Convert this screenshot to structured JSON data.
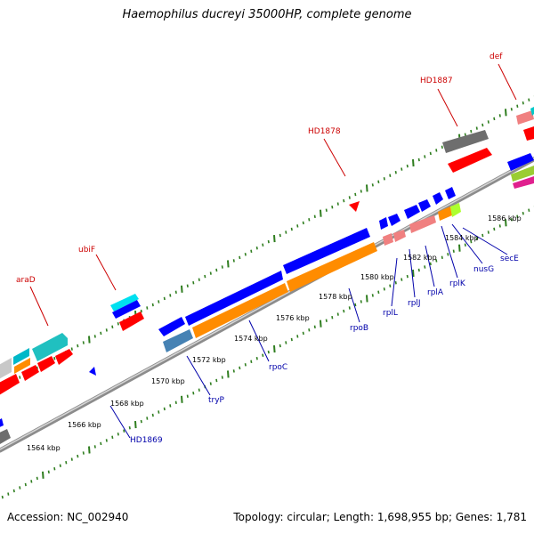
{
  "title": "Haemophilus ducreyi 35000HP, complete genome",
  "footer": {
    "accession": "Accession: NC_002940",
    "topology": "Topology: circular; Length: 1,698,955 bp; Genes: 1,781"
  },
  "colors": {
    "backbone": "#8c8c8c",
    "tick_green": "#2e7d1e",
    "forward_label": "#cc0000",
    "reverse_label": "#0000aa"
  },
  "scale_labels": [
    "1564 kbp",
    "1566 kbp",
    "1568 kbp",
    "1570 kbp",
    "1572 kbp",
    "1574 kbp",
    "1576 kbp",
    "1578 kbp",
    "1580 kbp",
    "1582 kbp",
    "1584 kbp",
    "1586 kbp"
  ],
  "forward_genes": [
    "araD",
    "ubiF",
    "HD1878",
    "HD1887",
    "def"
  ],
  "reverse_genes": [
    "HD1869",
    "tryP",
    "rpoC",
    "rpoB",
    "rplL",
    "rplJ",
    "rplA",
    "rplK",
    "nusG",
    "secE"
  ]
}
